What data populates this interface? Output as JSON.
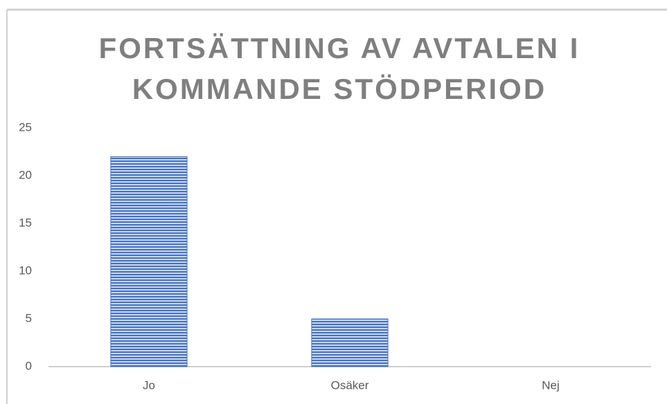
{
  "chart_data": {
    "type": "bar",
    "title": "FORTSÄTTNING AV AVTALEN I KOMMANDE STÖDPERIOD",
    "categories": [
      "Jo",
      "Osäker",
      "Nej"
    ],
    "values": [
      22,
      5,
      0
    ],
    "color": "#4472c4",
    "ylim": [
      0,
      25
    ],
    "yticks": [
      0,
      5,
      10,
      15,
      20,
      25
    ],
    "grid": false
  }
}
